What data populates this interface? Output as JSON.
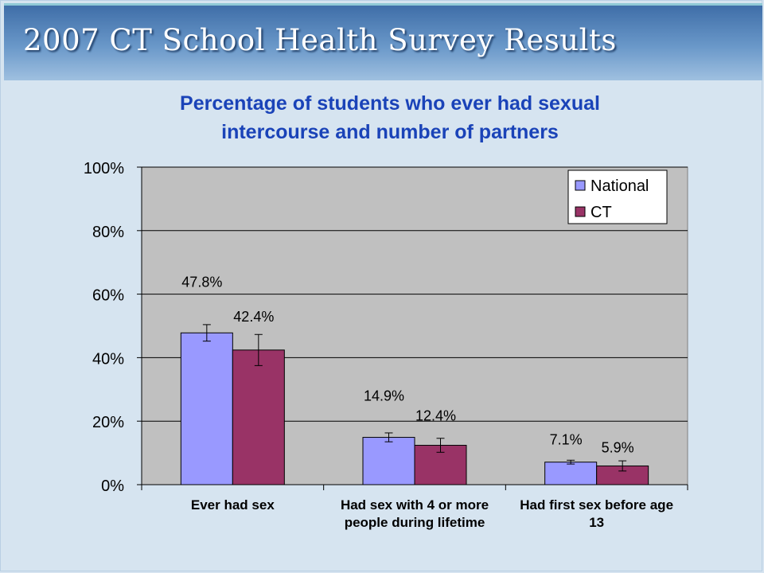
{
  "slide": {
    "header_title": "2007 CT School Health Survey Results"
  },
  "chart_data": {
    "type": "bar",
    "title_lines": [
      "Percentage of students who ever had sexual",
      "intercourse and number of partners"
    ],
    "category_lines": [
      [
        "Ever had sex"
      ],
      [
        "Had sex with  4 or more",
        "people during lifetime"
      ],
      [
        "Had first sex before age",
        "13"
      ]
    ],
    "series": [
      {
        "name": "National",
        "color": "#9999ff",
        "values": [
          47.8,
          14.9,
          7.1
        ],
        "labels": [
          "47.8%",
          "14.9%",
          "7.1%"
        ],
        "error_low": [
          45.2,
          13.5,
          6.5
        ],
        "error_high": [
          50.4,
          16.3,
          7.7
        ]
      },
      {
        "name": "CT",
        "color": "#993366",
        "values": [
          42.4,
          12.4,
          5.9
        ],
        "labels": [
          "42.4%",
          "12.4%",
          "5.9%"
        ],
        "error_low": [
          37.5,
          10.2,
          4.3
        ],
        "error_high": [
          47.3,
          14.6,
          7.5
        ]
      }
    ],
    "y_ticks": [
      "0%",
      "20%",
      "40%",
      "60%",
      "80%",
      "100%"
    ],
    "ylim": [
      0,
      100
    ],
    "grid": true,
    "legend_position": "top-right",
    "plot_background": "#c0c0c0"
  }
}
